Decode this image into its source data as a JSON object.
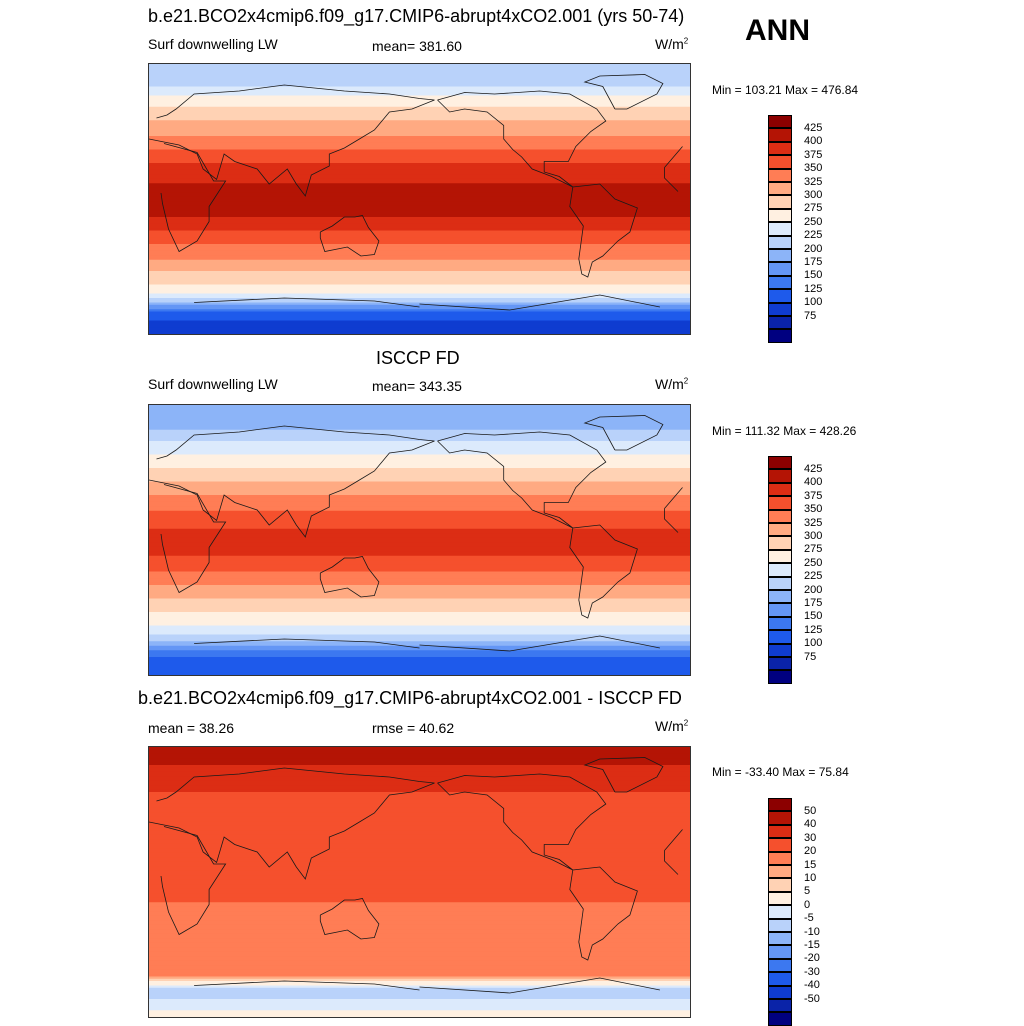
{
  "annual_label": "ANN",
  "panels": [
    {
      "title": "b.e21.BCO2x4cmip6.f09_g17.CMIP6-abrupt4xCO2.001 (yrs 50-74)",
      "left_label": "Surf downwelling LW",
      "center_label": "mean= 381.60",
      "units": "W/m",
      "units_sup": "2",
      "minmax": "Min = 103.21 Max = 476.84"
    },
    {
      "title": "ISCCP FD",
      "left_label": "Surf downwelling LW",
      "center_label": "mean= 343.35",
      "units": "W/m",
      "units_sup": "2",
      "minmax": "Min = 111.32 Max = 428.26"
    },
    {
      "title": "b.e21.BCO2x4cmip6.f09_g17.CMIP6-abrupt4xCO2.001 - ISCCP FD",
      "left_label": "mean =  38.26",
      "center_label": "rmse =  40.62",
      "units": "W/m",
      "units_sup": "2",
      "minmax": "Min = -33.40 Max =  75.84"
    }
  ],
  "chart_data": [
    {
      "type": "heatmap",
      "title": "b.e21.BCO2x4cmip6.f09_g17.CMIP6-abrupt4xCO2.001 (yrs 50-74)",
      "variable": "Surf downwelling LW",
      "units": "W/m2",
      "mean": 381.6,
      "min": 103.21,
      "max": 476.84,
      "levels": [
        75,
        100,
        125,
        150,
        175,
        200,
        225,
        250,
        275,
        300,
        325,
        350,
        375,
        400,
        425
      ],
      "colors": [
        "#000080",
        "#0a23a8",
        "#0f3cd0",
        "#1e5aeb",
        "#3c78f0",
        "#6496f5",
        "#8cb4f8",
        "#b9d2fa",
        "#dceafc",
        "#fff0e1",
        "#ffd2b4",
        "#ffaa82",
        "#ff7d55",
        "#f5502d",
        "#dc2d14",
        "#b41405",
        "#8c0000"
      ],
      "lat_profile": [
        {
          "lat": 80,
          "value": 230
        },
        {
          "lat": 65,
          "value": 290
        },
        {
          "lat": 50,
          "value": 330
        },
        {
          "lat": 35,
          "value": 370
        },
        {
          "lat": 20,
          "value": 410
        },
        {
          "lat": 5,
          "value": 435
        },
        {
          "lat": -10,
          "value": 432
        },
        {
          "lat": -25,
          "value": 390
        },
        {
          "lat": -40,
          "value": 350
        },
        {
          "lat": -55,
          "value": 305
        },
        {
          "lat": -65,
          "value": 265
        },
        {
          "lat": -75,
          "value": 150
        },
        {
          "lat": -85,
          "value": 110
        }
      ]
    },
    {
      "type": "heatmap",
      "title": "ISCCP FD",
      "variable": "Surf downwelling LW",
      "units": "W/m2",
      "mean": 343.35,
      "min": 111.32,
      "max": 428.26,
      "levels": [
        75,
        100,
        125,
        150,
        175,
        200,
        225,
        250,
        275,
        300,
        325,
        350,
        375,
        400,
        425
      ],
      "colors": [
        "#000080",
        "#0a23a8",
        "#0f3cd0",
        "#1e5aeb",
        "#3c78f0",
        "#6496f5",
        "#8cb4f8",
        "#b9d2fa",
        "#dceafc",
        "#fff0e1",
        "#ffd2b4",
        "#ffaa82",
        "#ff7d55",
        "#f5502d",
        "#dc2d14",
        "#b41405",
        "#8c0000"
      ],
      "lat_profile": [
        {
          "lat": 80,
          "value": 200
        },
        {
          "lat": 65,
          "value": 255
        },
        {
          "lat": 50,
          "value": 295
        },
        {
          "lat": 35,
          "value": 335
        },
        {
          "lat": 20,
          "value": 375
        },
        {
          "lat": 5,
          "value": 405
        },
        {
          "lat": -10,
          "value": 400
        },
        {
          "lat": -25,
          "value": 365
        },
        {
          "lat": -40,
          "value": 320
        },
        {
          "lat": -55,
          "value": 280
        },
        {
          "lat": -65,
          "value": 245
        },
        {
          "lat": -75,
          "value": 160
        },
        {
          "lat": -85,
          "value": 125
        }
      ]
    },
    {
      "type": "heatmap",
      "title": "b.e21.BCO2x4cmip6.f09_g17.CMIP6-abrupt4xCO2.001 - ISCCP FD",
      "variable": "Surf downwelling LW",
      "units": "W/m2",
      "mean": 38.26,
      "rmse": 40.62,
      "min": -33.4,
      "max": 75.84,
      "levels": [
        -50,
        -40,
        -30,
        -20,
        -15,
        -10,
        -5,
        0,
        5,
        10,
        15,
        20,
        30,
        40,
        50
      ],
      "colors": [
        "#000080",
        "#0a23a8",
        "#0f3cd0",
        "#1e5aeb",
        "#3c78f0",
        "#6496f5",
        "#8cb4f8",
        "#b9d2fa",
        "#dceafc",
        "#fff0e1",
        "#ffd2b4",
        "#ffaa82",
        "#ff7d55",
        "#f5502d",
        "#dc2d14",
        "#b41405",
        "#8c0000"
      ],
      "lat_profile": [
        {
          "lat": 85,
          "value": 55
        },
        {
          "lat": 70,
          "value": 45
        },
        {
          "lat": 55,
          "value": 38
        },
        {
          "lat": 40,
          "value": 35
        },
        {
          "lat": 25,
          "value": 32
        },
        {
          "lat": 10,
          "value": 36
        },
        {
          "lat": -5,
          "value": 33
        },
        {
          "lat": -20,
          "value": 28
        },
        {
          "lat": -35,
          "value": 30
        },
        {
          "lat": -50,
          "value": 27
        },
        {
          "lat": -62,
          "value": 22
        },
        {
          "lat": -72,
          "value": -5
        },
        {
          "lat": -85,
          "value": 5
        }
      ]
    }
  ]
}
